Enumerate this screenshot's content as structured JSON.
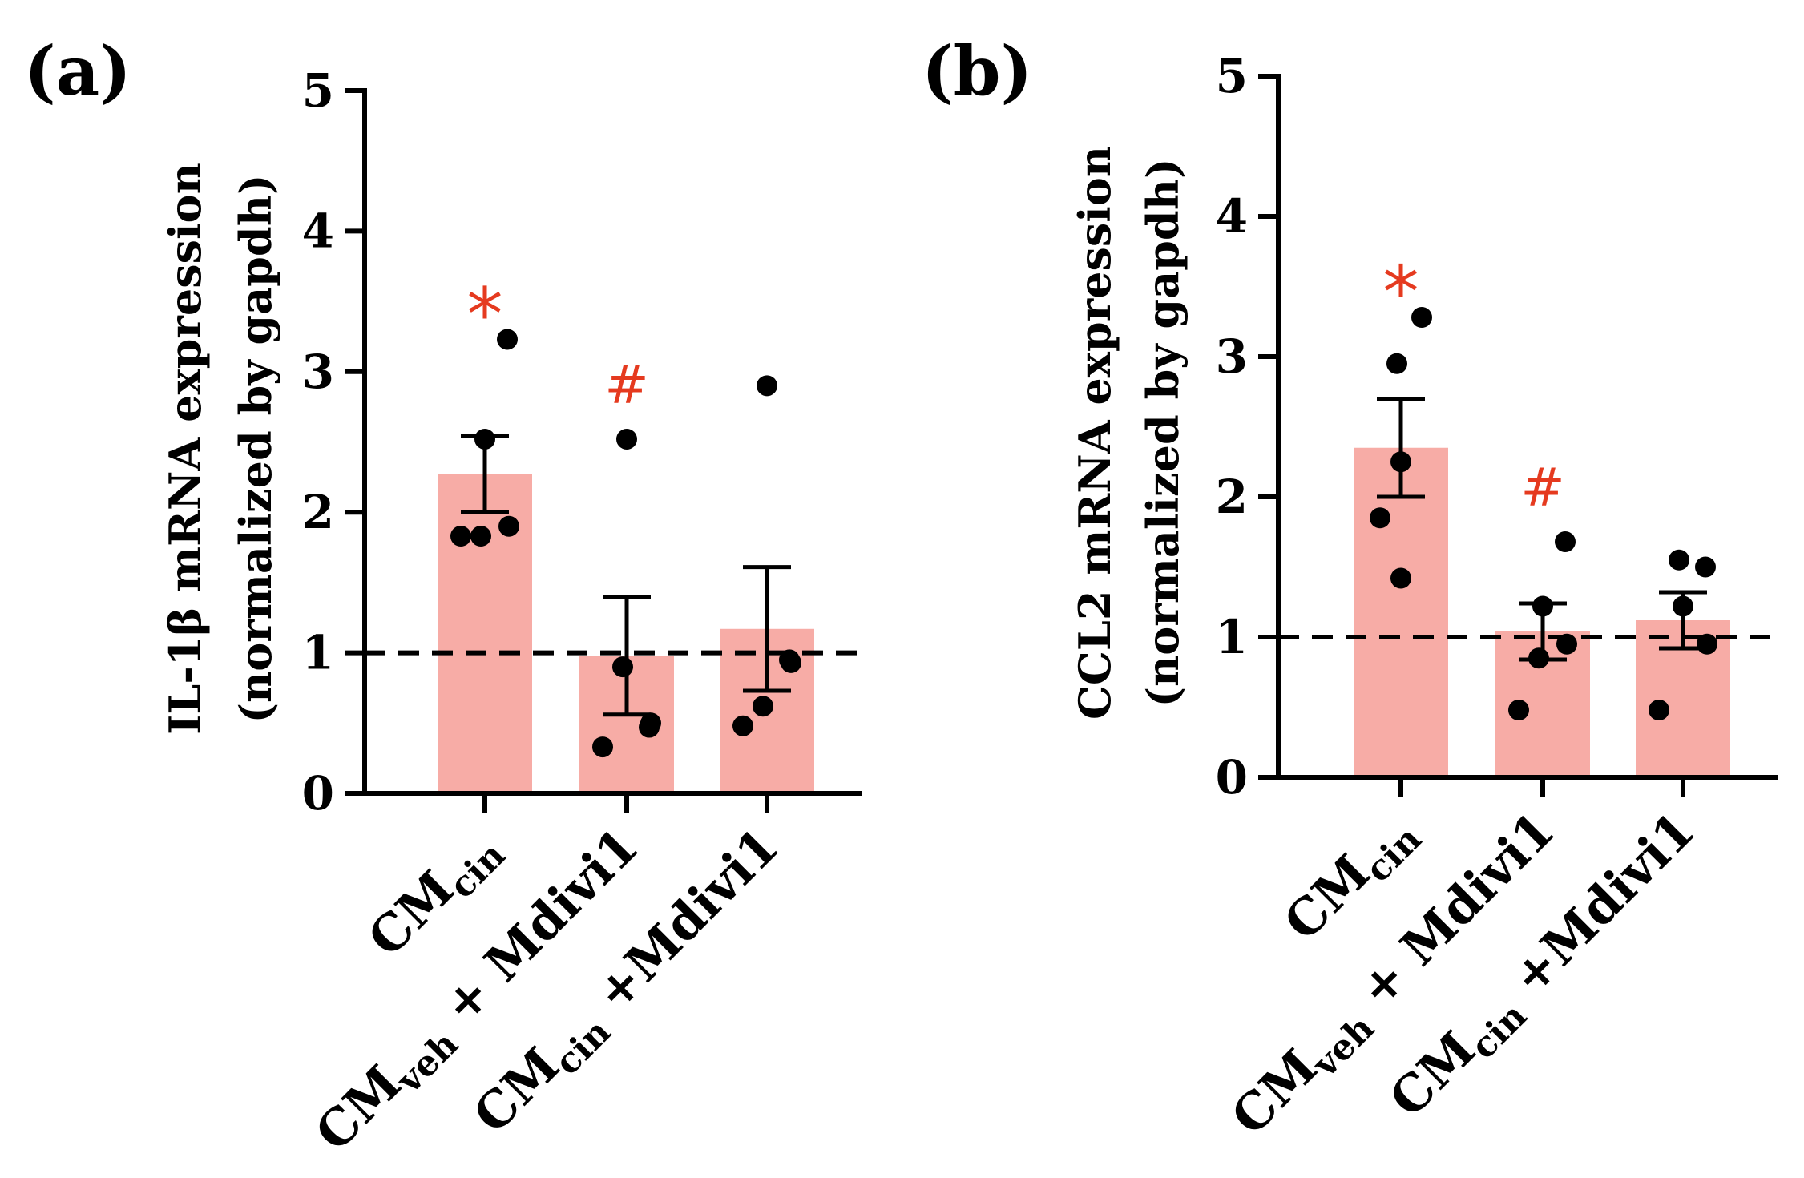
{
  "chart_data": [
    {
      "type": "bar",
      "panel_label": "(a)",
      "ylabel_lines": [
        "IL-1β mRNA expression",
        "(normalized by gapdh)"
      ],
      "ylim": [
        0,
        5
      ],
      "yticks": [
        "0",
        "1",
        "2",
        "3",
        "4",
        "5"
      ],
      "reference_line": 1,
      "categories": [
        {
          "main": "CM",
          "sub": "cin",
          "suffix": ""
        },
        {
          "main": "CM",
          "sub": "veh",
          "suffix": "+ Mdivi1"
        },
        {
          "main": "CM",
          "sub": "cin",
          "suffix": "+Mdivi1"
        }
      ],
      "values": [
        2.27,
        0.98,
        1.17
      ],
      "sem": [
        0.27,
        0.42,
        0.44
      ],
      "points": [
        [
          1.83,
          1.9,
          2.52,
          1.83,
          3.23
        ],
        [
          0.33,
          0.5,
          2.52,
          0.9,
          0.47
        ],
        [
          0.48,
          0.93,
          2.9,
          0.62,
          0.95
        ]
      ],
      "annotations": [
        "*",
        "#",
        ""
      ],
      "bar_color": "#f7aca6"
    },
    {
      "type": "bar",
      "panel_label": "(b)",
      "ylabel_lines": [
        "CCL2 mRNA expression",
        "(normalized by gapdh)"
      ],
      "ylim": [
        0,
        5
      ],
      "yticks": [
        "0",
        "1",
        "2",
        "3",
        "4",
        "5"
      ],
      "reference_line": 1,
      "categories": [
        {
          "main": "CM",
          "sub": "cin",
          "suffix": ""
        },
        {
          "main": "CM",
          "sub": "veh",
          "suffix": "+ Mdivi1"
        },
        {
          "main": "CM",
          "sub": "cin",
          "suffix": "+Mdivi1"
        }
      ],
      "values": [
        2.35,
        1.04,
        1.12
      ],
      "sem": [
        0.35,
        0.2,
        0.2
      ],
      "points": [
        [
          1.42,
          1.85,
          2.25,
          2.95,
          3.28
        ],
        [
          0.48,
          0.95,
          1.22,
          0.85,
          1.68
        ],
        [
          0.48,
          0.95,
          1.22,
          1.55,
          1.5
        ]
      ],
      "annotations": [
        "*",
        "#",
        ""
      ],
      "bar_color": "#f7aca6"
    }
  ]
}
